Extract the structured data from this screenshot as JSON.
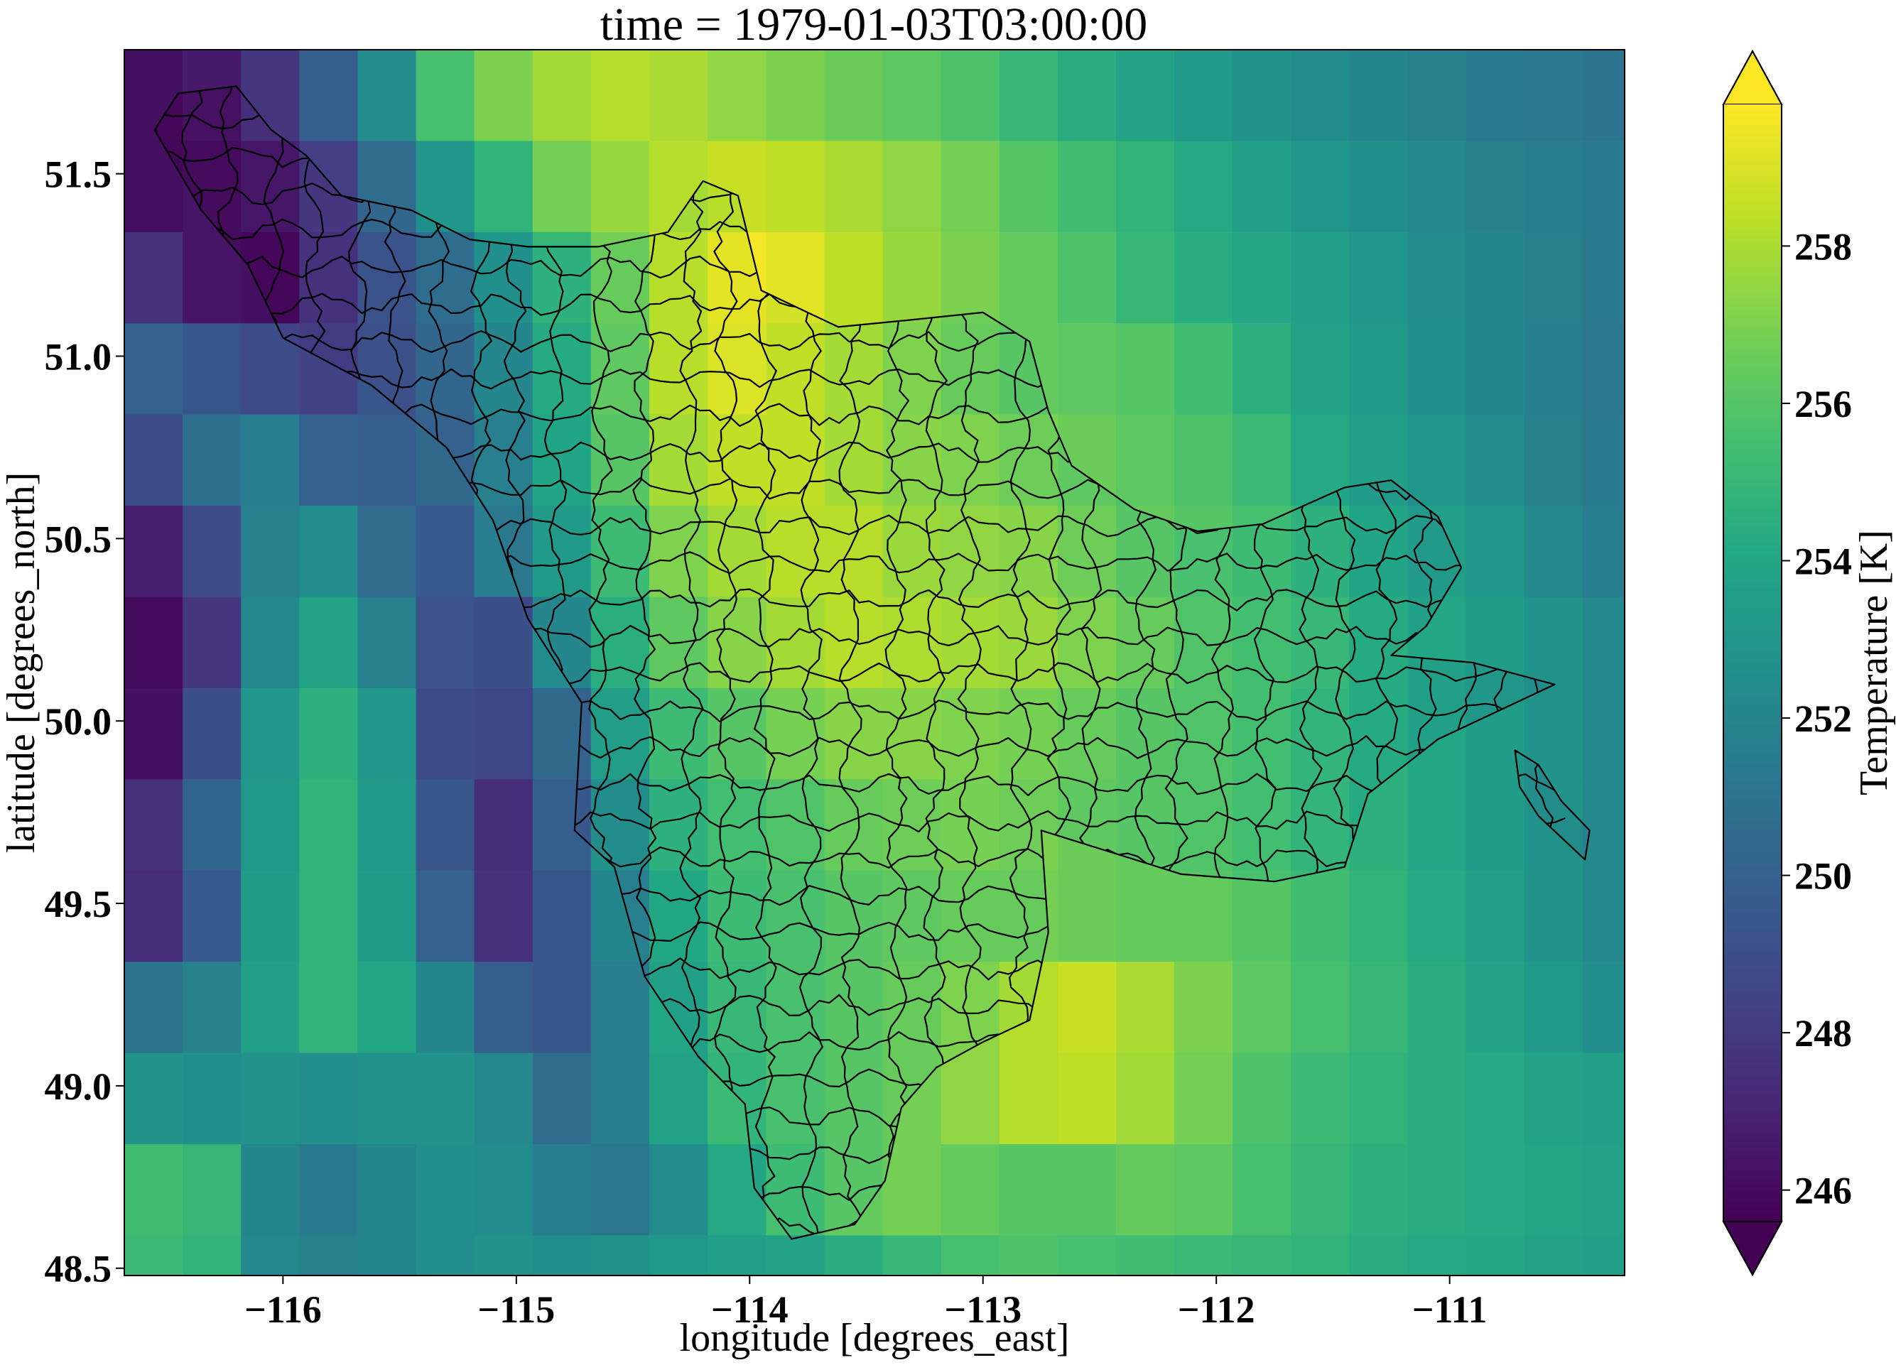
{
  "chart_data": {
    "type": "heatmap",
    "title": "time = 1979-01-03T03:00:00",
    "xlabel": "longitude [degrees_east]",
    "ylabel": "latitude [degrees_north]",
    "xlim": [
      -116.68,
      -110.25
    ],
    "ylim": [
      48.48,
      51.84
    ],
    "x_ticks": [
      -116,
      -115,
      -114,
      -113,
      -112,
      -111
    ],
    "x_tick_labels": [
      "−116",
      "−115",
      "−114",
      "−113",
      "−112",
      "−111"
    ],
    "y_ticks": [
      48.5,
      49.0,
      49.5,
      50.0,
      50.5,
      51.0,
      51.5
    ],
    "y_tick_labels": [
      "48.5",
      "49.0",
      "49.5",
      "50.0",
      "50.5",
      "51.0",
      "51.5"
    ],
    "grid_x_start": -116.68,
    "grid_dx": 0.25,
    "grid_y_start": 51.84,
    "grid_dy": -0.25,
    "temperature_grid": [
      [
        246.2,
        246.6,
        247.8,
        249.8,
        252.4,
        255.6,
        257.0,
        257.8,
        258.2,
        258.0,
        257.4,
        257.0,
        256.6,
        256.2,
        255.8,
        255.0,
        254.4,
        253.8,
        253.2,
        252.8,
        252.4,
        252.0,
        251.8,
        251.4,
        251.2,
        251.0
      ],
      [
        246.2,
        246.4,
        246.8,
        248.2,
        250.6,
        253.0,
        254.8,
        256.8,
        257.6,
        258.2,
        258.6,
        258.4,
        258.0,
        257.4,
        256.8,
        256.0,
        255.4,
        254.8,
        254.2,
        253.6,
        253.0,
        252.6,
        252.2,
        251.8,
        251.6,
        251.4
      ],
      [
        247.6,
        246.4,
        246.2,
        248.0,
        249.6,
        251.0,
        253.0,
        255.0,
        256.8,
        258.6,
        259.6,
        259.2,
        258.4,
        257.6,
        257.0,
        256.4,
        255.8,
        255.0,
        254.4,
        254.0,
        253.6,
        253.0,
        252.4,
        252.0,
        251.8,
        251.4
      ],
      [
        250.0,
        249.4,
        248.8,
        248.4,
        249.4,
        250.6,
        252.4,
        254.6,
        256.6,
        258.6,
        259.4,
        258.8,
        258.2,
        257.4,
        256.8,
        256.4,
        256.2,
        256.0,
        255.4,
        254.6,
        253.8,
        253.2,
        252.6,
        252.0,
        251.6,
        251.2
      ],
      [
        248.8,
        250.8,
        251.6,
        250.0,
        249.8,
        250.4,
        252.0,
        254.2,
        256.4,
        258.2,
        258.8,
        258.8,
        258.2,
        257.6,
        257.4,
        257.0,
        256.6,
        256.2,
        255.8,
        255.2,
        254.2,
        253.6,
        253.0,
        252.4,
        251.8,
        251.4
      ],
      [
        246.8,
        248.8,
        251.8,
        252.4,
        250.6,
        249.6,
        251.6,
        253.6,
        255.6,
        257.4,
        258.2,
        258.6,
        258.6,
        258.0,
        257.8,
        257.6,
        257.0,
        256.4,
        256.0,
        255.6,
        255.0,
        254.2,
        253.6,
        253.0,
        252.2,
        251.6
      ],
      [
        246.0,
        247.8,
        252.2,
        253.8,
        251.8,
        249.2,
        249.0,
        252.4,
        254.8,
        256.6,
        257.6,
        258.2,
        258.6,
        258.4,
        258.2,
        258.0,
        257.4,
        256.8,
        256.2,
        255.8,
        255.4,
        254.6,
        254.0,
        253.4,
        252.8,
        252.2
      ],
      [
        246.2,
        249.0,
        253.0,
        254.6,
        253.0,
        248.8,
        248.6,
        250.4,
        253.8,
        255.6,
        256.4,
        257.2,
        257.6,
        257.6,
        257.4,
        257.2,
        256.8,
        256.4,
        256.2,
        255.8,
        255.2,
        254.6,
        254.0,
        253.4,
        252.8,
        252.2
      ],
      [
        247.6,
        250.2,
        253.2,
        254.8,
        253.2,
        249.4,
        247.4,
        249.8,
        252.8,
        255.0,
        255.8,
        256.2,
        256.8,
        257.0,
        257.2,
        257.0,
        256.6,
        256.4,
        256.2,
        255.8,
        255.2,
        254.6,
        254.0,
        253.4,
        252.8,
        252.2
      ],
      [
        247.4,
        249.6,
        253.4,
        254.8,
        253.4,
        250.0,
        247.6,
        249.4,
        252.0,
        254.4,
        255.6,
        256.0,
        256.4,
        256.6,
        256.8,
        256.8,
        256.6,
        256.4,
        256.4,
        256.0,
        255.4,
        254.8,
        254.2,
        253.6,
        252.8,
        252.2
      ],
      [
        251.0,
        251.8,
        253.6,
        254.8,
        254.0,
        252.0,
        249.8,
        249.4,
        251.6,
        254.0,
        255.4,
        256.0,
        256.4,
        256.8,
        257.4,
        258.2,
        258.6,
        258.0,
        257.0,
        256.2,
        255.6,
        255.0,
        254.4,
        253.8,
        253.2,
        252.6
      ],
      [
        252.8,
        252.6,
        252.8,
        252.6,
        252.8,
        252.8,
        252.2,
        250.6,
        251.6,
        253.8,
        255.2,
        256.0,
        256.4,
        256.8,
        257.4,
        258.2,
        258.4,
        257.8,
        256.8,
        255.8,
        255.2,
        254.8,
        254.4,
        254.2,
        253.8,
        253.6
      ],
      [
        255.4,
        255.0,
        252.0,
        251.4,
        252.0,
        252.6,
        252.4,
        251.6,
        251.2,
        252.4,
        254.2,
        255.6,
        256.4,
        256.8,
        256.4,
        256.0,
        256.0,
        256.4,
        256.2,
        255.6,
        255.0,
        254.6,
        254.4,
        254.2,
        254.0,
        253.8
      ],
      [
        255.2,
        254.8,
        252.2,
        251.8,
        252.0,
        252.6,
        252.8,
        252.6,
        252.8,
        253.2,
        253.6,
        253.8,
        254.4,
        255.0,
        255.6,
        255.8,
        255.6,
        255.4,
        255.2,
        255.0,
        254.8,
        254.4,
        254.2,
        254.0,
        253.8,
        253.6
      ],
      [
        256.8,
        255.0,
        252.2,
        252.0,
        252.6,
        253.4,
        253.0,
        252.8,
        254.0,
        254.2,
        253.0,
        252.4,
        252.8,
        253.4,
        254.0,
        254.4,
        254.6,
        254.8,
        255.0,
        255.0,
        254.8,
        254.6,
        254.4,
        254.2,
        253.8,
        253.4
      ]
    ],
    "colorbar": {
      "label": "Temperature [K]",
      "min": 245.6,
      "max": 259.8,
      "extend": "both",
      "colormap": "viridis",
      "ticks": [
        246,
        248,
        250,
        252,
        254,
        256,
        258
      ],
      "tick_labels": [
        "246",
        "248",
        "250",
        "252",
        "254",
        "256",
        "258"
      ]
    },
    "overlay": "sub-basin boundary polygons (black outline)",
    "grid": false
  }
}
